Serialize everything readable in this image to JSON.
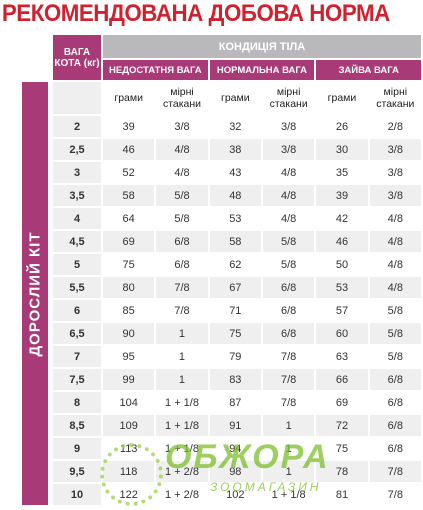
{
  "header": {
    "title": "РЕКОМЕНДОВАНА ДОБОВА НОРМА"
  },
  "table": {
    "side_label": "ДОРОСЛИЙ КІТ",
    "weight_header": "ВАГА КОТА (кг)",
    "condition_header": "КОНДИЦІЯ ТІЛА",
    "groups": [
      "НЕДОСТАТНЯ ВАГА",
      "НОРМАЛЬНА ВАГА",
      "ЗАЙВА ВАГА"
    ],
    "subheaders": [
      "грами",
      "мірні стакани",
      "грами",
      "мірні стакани",
      "грами",
      "мірні стакани"
    ],
    "rows": [
      [
        "2",
        39,
        "3/8",
        32,
        "3/8",
        26,
        "2/8"
      ],
      [
        "2,5",
        46,
        "4/8",
        38,
        "3/8",
        30,
        "3/8"
      ],
      [
        "3",
        52,
        "4/8",
        43,
        "4/8",
        35,
        "3/8"
      ],
      [
        "3,5",
        58,
        "5/8",
        48,
        "4/8",
        39,
        "3/8"
      ],
      [
        "4",
        64,
        "5/8",
        53,
        "4/8",
        42,
        "4/8"
      ],
      [
        "4,5",
        69,
        "6/8",
        58,
        "5/8",
        46,
        "4/8"
      ],
      [
        "5",
        75,
        "6/8",
        62,
        "5/8",
        50,
        "4/8"
      ],
      [
        "5,5",
        80,
        "7/8",
        67,
        "6/8",
        53,
        "4/8"
      ],
      [
        "6",
        85,
        "7/8",
        71,
        "6/8",
        57,
        "5/8"
      ],
      [
        "6,5",
        90,
        "1",
        75,
        "6/8",
        60,
        "5/8"
      ],
      [
        "7",
        95,
        "1",
        79,
        "7/8",
        63,
        "5/8"
      ],
      [
        "7,5",
        99,
        "1",
        83,
        "7/8",
        66,
        "6/8"
      ],
      [
        "8",
        104,
        "1 + 1/8",
        87,
        "7/8",
        69,
        "6/8"
      ],
      [
        "8,5",
        109,
        "1 + 1/8",
        91,
        "1",
        72,
        "6/8"
      ],
      [
        "9",
        113,
        "1 + 1/8",
        94,
        "1",
        75,
        "6/8"
      ],
      [
        "9,5",
        118,
        "1 + 2/8",
        98,
        "1",
        78,
        "7/8"
      ],
      [
        "10",
        122,
        "1 + 2/8",
        102,
        "1 + 1/8",
        81,
        "7/8"
      ]
    ]
  },
  "watermark": {
    "brand": "ОБЖОРА",
    "subtitle": "ЗООМАГАЗИН"
  }
}
